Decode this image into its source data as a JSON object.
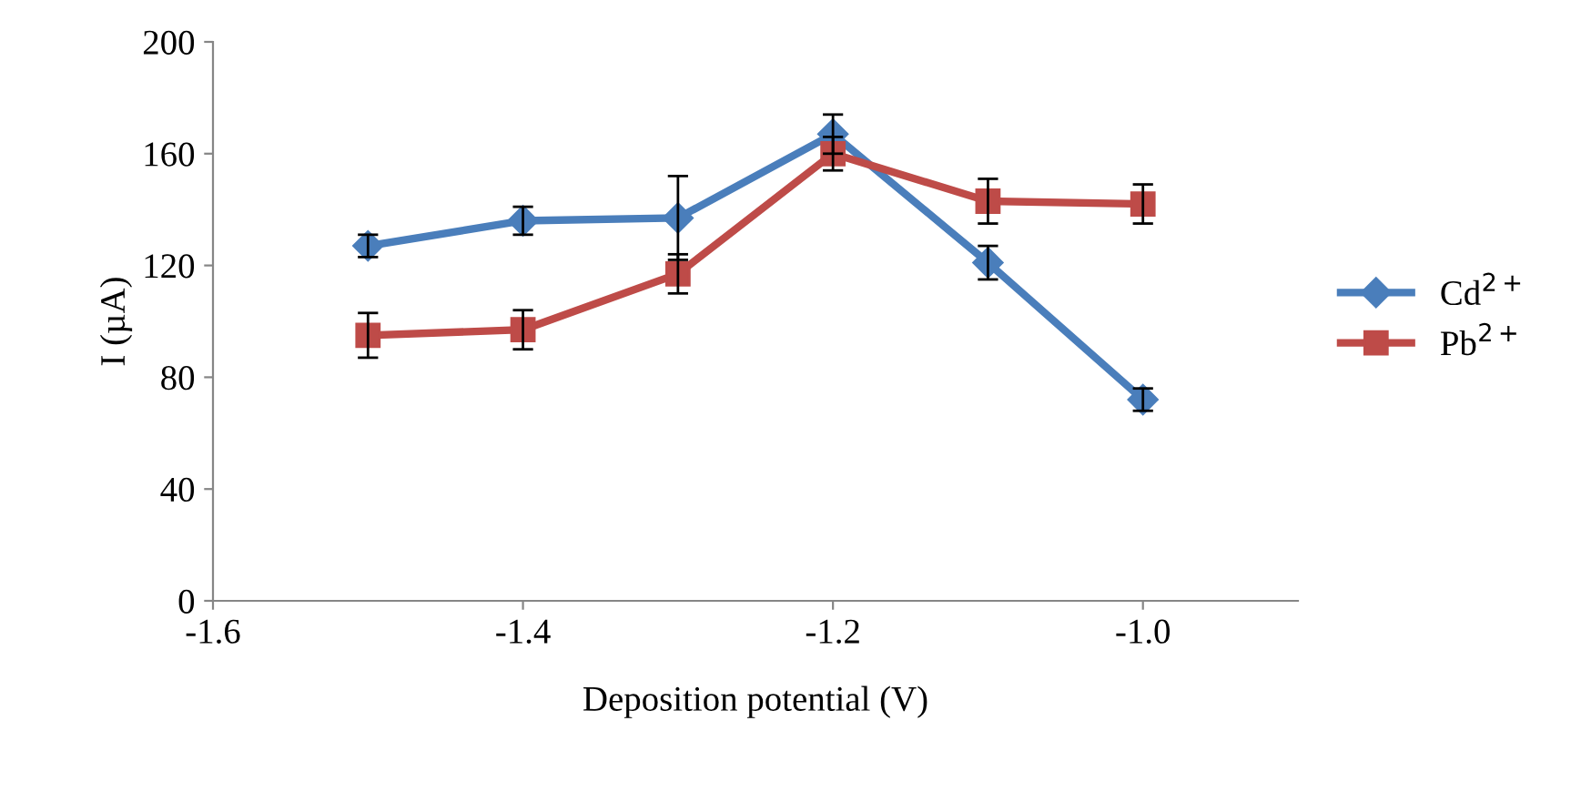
{
  "chart_data": {
    "type": "line",
    "xlabel": "Deposition potential (V)",
    "ylabel": "I (µA)",
    "x": [
      -1.5,
      -1.4,
      -1.3,
      -1.2,
      -1.1,
      -1.0
    ],
    "series": [
      {
        "name": "Cd$^{2+}$",
        "color": "#4a7ebb",
        "marker": "diamond",
        "values": [
          127,
          136,
          137,
          167,
          121,
          72
        ],
        "errors": [
          4,
          5,
          15,
          7,
          6,
          4
        ]
      },
      {
        "name": "Pb$^{2+}$",
        "color": "#be4b48",
        "marker": "square",
        "values": [
          95,
          97,
          117,
          160,
          143,
          142
        ],
        "errors": [
          8,
          7,
          7,
          6,
          8,
          7
        ]
      }
    ],
    "xlim": [
      -1.6,
      -0.9
    ],
    "xticks": [
      {
        "value": -1.6,
        "label": "-1.6"
      },
      {
        "value": -1.4,
        "label": "-1.4"
      },
      {
        "value": -1.2,
        "label": "-1.2"
      },
      {
        "value": -1.0,
        "label": "-1.0"
      }
    ],
    "ylim": [
      0,
      200
    ],
    "yticks": [
      0,
      40,
      80,
      120,
      160,
      200
    ],
    "grid": false,
    "legend": "right",
    "line_style": "solid"
  }
}
